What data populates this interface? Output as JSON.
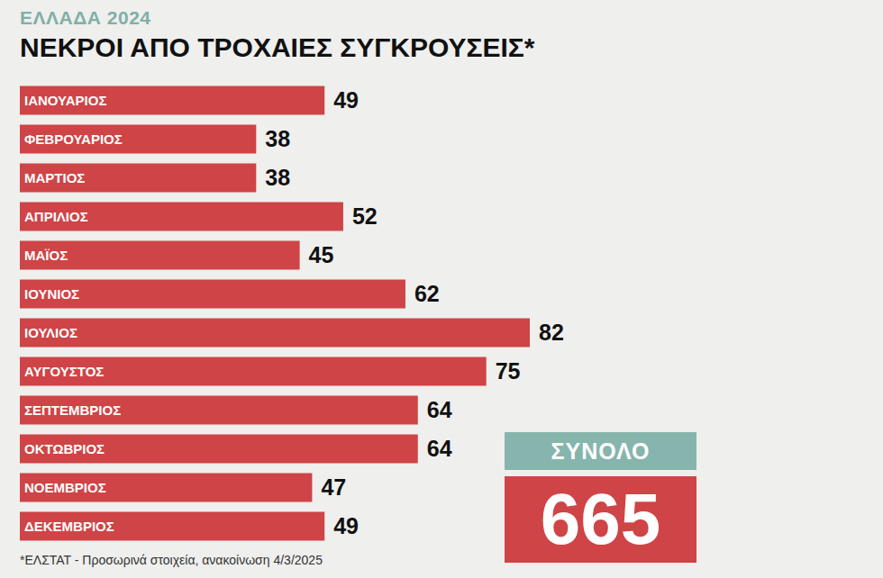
{
  "chart_data": {
    "type": "bar",
    "subtitle": "ΕΛΛΑΔΑ 2024",
    "title": "ΝΕΚΡΟΙ ΑΠΟ ΤΡΟΧΑΙΕΣ ΣΥΓΚΡΟΥΣΕΙΣ*",
    "categories": [
      "ΙΑΝΟΥΑΡΙΟΣ",
      "ΦΕΒΡΟΥΑΡΙΟΣ",
      "ΜΑΡΤΙΟΣ",
      "ΑΠΡΙΛΙΟΣ",
      "ΜΑΪΟΣ",
      "ΙΟΥΝΙΟΣ",
      "ΙΟΥΛΙΟΣ",
      "ΑΥΓΟΥΣΤΟΣ",
      "ΣΕΠΤΕΜΒΡΙΟΣ",
      "ΟΚΤΩΒΡΙΟΣ",
      "ΝΟΕΜΒΡΙΟΣ",
      "ΔΕΚΕΜΒΡΙΟΣ"
    ],
    "values": [
      49,
      38,
      38,
      52,
      45,
      62,
      82,
      75,
      64,
      64,
      47,
      49
    ],
    "color": "#cf4446",
    "orientation": "horizontal",
    "data_labels": true,
    "tick_labels": false,
    "grid": false,
    "total": {
      "label": "ΣΥΝΟΛΟ",
      "value": 665
    },
    "footnote": "*ΕΛΣΤΑΤ - Προσωρινά στοιχεία, ανακοίνωση 4/3/2025"
  }
}
